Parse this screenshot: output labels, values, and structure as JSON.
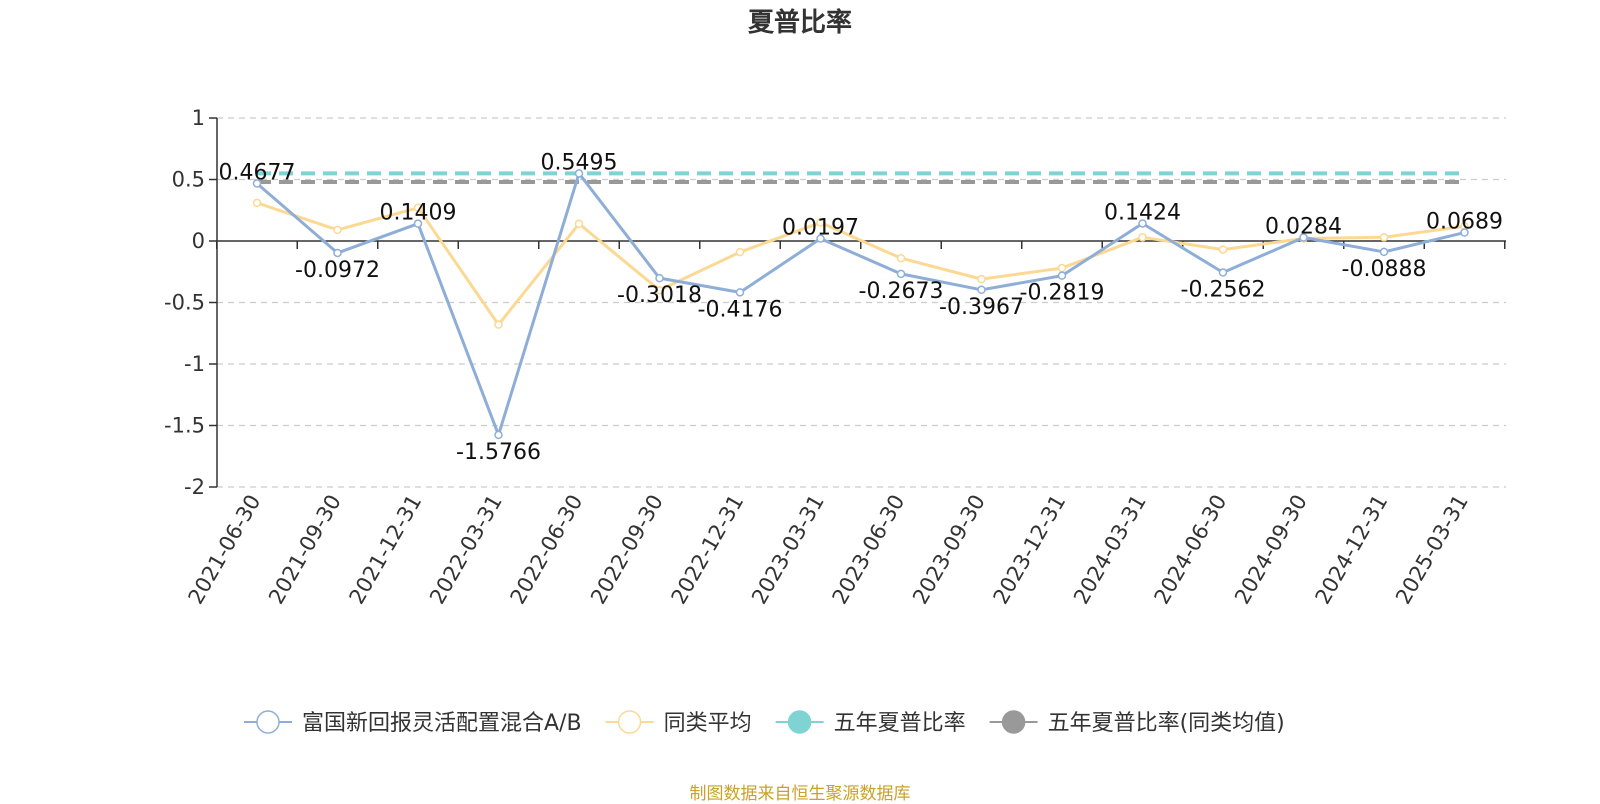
{
  "chart_data": {
    "type": "line",
    "title": "夏普比率",
    "source": "制图数据来自恒生聚源数据库",
    "xlabel": "",
    "ylabel": "",
    "ylim": [
      -2,
      1
    ],
    "yticks": [
      "1",
      "0.5",
      "0",
      "-0.5",
      "-1",
      "-1.5",
      "-2"
    ],
    "ytick_values": [
      1,
      0.5,
      0,
      -0.5,
      -1,
      -1.5,
      -2
    ],
    "grid": true,
    "legend_position": "bottom",
    "categories": [
      "2021-06-30",
      "2021-09-30",
      "2021-12-31",
      "2022-03-31",
      "2022-06-30",
      "2022-09-30",
      "2022-12-31",
      "2023-03-31",
      "2023-06-30",
      "2023-09-30",
      "2023-12-31",
      "2024-03-31",
      "2024-06-30",
      "2024-09-30",
      "2024-12-31",
      "2025-03-31"
    ],
    "series": [
      {
        "name": "富国新回报灵活配置混合A/B",
        "color": "#8eaed8",
        "values": [
          0.4677,
          -0.0972,
          0.1409,
          -1.5766,
          0.5495,
          -0.3018,
          -0.4176,
          0.0197,
          -0.2673,
          -0.3967,
          -0.2819,
          0.1424,
          -0.2562,
          0.0284,
          -0.0888,
          0.0689
        ],
        "labels": [
          "0.4677",
          "-0.0972",
          "0.1409",
          "-1.5766",
          "0.5495",
          "-0.3018",
          "-0.4176",
          "0.0197",
          "-0.2673",
          "-0.3967",
          "-0.2819",
          "0.1424",
          "-0.2562",
          "0.0284",
          "-0.0888",
          "0.0689"
        ]
      },
      {
        "name": "同类平均",
        "color": "#fbd992",
        "values": [
          0.31,
          0.09,
          0.27,
          -0.68,
          0.14,
          -0.4,
          -0.09,
          0.15,
          -0.14,
          -0.31,
          -0.22,
          0.03,
          -0.07,
          0.02,
          0.03,
          0.12
        ]
      },
      {
        "name": "五年夏普比率",
        "color": "#7fd3d3",
        "reference_value": 0.55
      },
      {
        "name": "五年夏普比率(同类均值)",
        "color": "#999999",
        "reference_value": 0.48
      }
    ]
  }
}
